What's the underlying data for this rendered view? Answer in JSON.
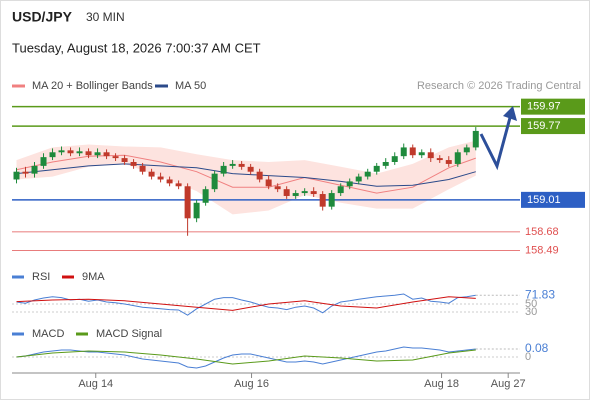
{
  "header": {
    "symbol": "USD/JPY",
    "interval": "30 MIN",
    "timestamp": "Tuesday, August 18, 2026 7:00:37 AM CET"
  },
  "chart_data": [
    {
      "type": "candlestick",
      "source": "Research © 2026 Trading Central",
      "xlim": [
        -0.5,
        54.8
      ],
      "ylim": [
        158.37,
        160.09
      ],
      "xticks": [
        {
          "value": 8.8,
          "label": "Aug 14"
        },
        {
          "value": 26.1,
          "label": "Aug 16"
        },
        {
          "value": 47.2,
          "label": "Aug 18"
        },
        {
          "value": 54.6,
          "label": "Aug 27"
        }
      ],
      "up_color": "#1e8a3c",
      "down_color": "#c0392b",
      "open": [
        159.22,
        159.3,
        159.28,
        159.36,
        159.45,
        159.5,
        159.52,
        159.49,
        159.51,
        159.47,
        159.5,
        159.46,
        159.44,
        159.4,
        159.36,
        159.3,
        159.25,
        159.22,
        159.18,
        159.15,
        158.82,
        158.98,
        159.12,
        159.28,
        159.36,
        159.38,
        159.35,
        159.3,
        159.22,
        159.15,
        159.12,
        159.05,
        159.08,
        159.1,
        159.07,
        158.94,
        159.08,
        159.15,
        159.2,
        159.25,
        159.3,
        159.36,
        159.4,
        159.46,
        159.55,
        159.47,
        159.5,
        159.44,
        159.42,
        159.38,
        159.5,
        159.55
      ],
      "close": [
        159.3,
        159.28,
        159.36,
        159.45,
        159.5,
        159.52,
        159.49,
        159.51,
        159.47,
        159.5,
        159.46,
        159.44,
        159.4,
        159.36,
        159.3,
        159.25,
        159.22,
        159.18,
        159.15,
        158.82,
        158.98,
        159.12,
        159.28,
        159.36,
        159.38,
        159.35,
        159.3,
        159.22,
        159.15,
        159.12,
        159.05,
        159.08,
        159.1,
        159.07,
        158.94,
        159.08,
        159.15,
        159.2,
        159.25,
        159.3,
        159.36,
        159.4,
        159.46,
        159.55,
        159.47,
        159.5,
        159.44,
        159.42,
        159.38,
        159.5,
        159.55,
        159.72
      ],
      "high": [
        159.34,
        159.35,
        159.4,
        159.49,
        159.54,
        159.56,
        159.55,
        159.55,
        159.54,
        159.54,
        159.53,
        159.49,
        159.47,
        159.43,
        159.39,
        159.33,
        159.29,
        159.25,
        159.21,
        159.18,
        159.01,
        159.15,
        159.31,
        159.4,
        159.42,
        159.41,
        159.38,
        159.33,
        159.26,
        159.18,
        159.15,
        159.11,
        159.13,
        159.14,
        159.1,
        159.11,
        159.18,
        159.23,
        159.28,
        159.33,
        159.39,
        159.44,
        159.5,
        159.59,
        159.58,
        159.53,
        159.54,
        159.47,
        159.46,
        159.53,
        159.58,
        159.76
      ],
      "low": [
        159.18,
        159.24,
        159.24,
        159.33,
        159.42,
        159.47,
        159.46,
        159.46,
        159.44,
        159.44,
        159.43,
        159.41,
        159.37,
        159.33,
        159.27,
        159.22,
        159.19,
        159.15,
        159.12,
        158.64,
        158.78,
        158.95,
        159.09,
        159.25,
        159.33,
        159.32,
        159.27,
        159.19,
        159.12,
        159.09,
        159.02,
        159.02,
        159.05,
        159.04,
        158.9,
        158.91,
        159.05,
        159.12,
        159.17,
        159.22,
        159.27,
        159.33,
        159.37,
        159.43,
        159.44,
        159.44,
        159.4,
        159.39,
        159.35,
        159.35,
        159.47,
        159.52
      ],
      "overlays": [
        {
          "name": "MA 20 + Bollinger Bands",
          "color": "#f08080",
          "band_color": "#fde3df",
          "x": [
            0,
            4,
            8,
            12,
            16,
            20,
            24,
            28,
            32,
            36,
            40,
            44,
            48,
            51
          ],
          "values": [
            159.32,
            159.4,
            159.46,
            159.47,
            159.4,
            159.3,
            159.14,
            159.14,
            159.24,
            159.16,
            159.08,
            159.14,
            159.34,
            159.44
          ],
          "upper": [
            159.42,
            159.55,
            159.58,
            159.56,
            159.55,
            159.48,
            159.42,
            159.4,
            159.42,
            159.35,
            159.28,
            159.38,
            159.55,
            159.62
          ],
          "lower": [
            159.22,
            159.25,
            159.35,
            159.38,
            159.25,
            159.1,
            158.86,
            158.9,
            159.06,
            158.98,
            158.92,
            158.92,
            159.12,
            159.26
          ]
        },
        {
          "name": "MA 50",
          "color": "#2b4a8a",
          "x": [
            0,
            4,
            8,
            12,
            16,
            20,
            24,
            28,
            32,
            36,
            40,
            44,
            48,
            51
          ],
          "values": [
            159.28,
            159.32,
            159.36,
            159.38,
            159.36,
            159.34,
            159.28,
            159.26,
            159.24,
            159.2,
            159.15,
            159.16,
            159.22,
            159.3
          ]
        }
      ],
      "levels": [
        {
          "value": 159.97,
          "color": "#5a9a1a",
          "boxed": true
        },
        {
          "value": 159.77,
          "color": "#5a9a1a",
          "boxed": true
        },
        {
          "value": 159.01,
          "color": "#2d5fc4",
          "boxed": true
        },
        {
          "value": 158.68,
          "color": "#e05050",
          "boxed": false
        },
        {
          "value": 158.49,
          "color": "#e05050",
          "boxed": false
        }
      ]
    },
    {
      "type": "line",
      "ylim": [
        0,
        100
      ],
      "yticks": [
        30,
        50
      ],
      "series": [
        {
          "name": "RSI",
          "color": "#4a7fd4",
          "values": [
            55,
            52,
            60,
            65,
            68,
            66,
            60,
            62,
            57,
            60,
            55,
            53,
            50,
            46,
            42,
            40,
            38,
            36,
            35,
            22,
            38,
            50,
            62,
            66,
            66,
            60,
            55,
            48,
            42,
            40,
            36,
            42,
            45,
            40,
            28,
            45,
            55,
            58,
            62,
            65,
            68,
            70,
            72,
            75,
            62,
            65,
            57,
            55,
            52,
            66,
            68,
            71.83
          ]
        },
        {
          "name": "9MA",
          "color": "#d01010",
          "x": [
            0,
            4,
            8,
            12,
            16,
            20,
            24,
            28,
            32,
            36,
            40,
            44,
            48,
            51
          ],
          "values": [
            56,
            60,
            62,
            58,
            50,
            42,
            34,
            50,
            58,
            45,
            40,
            55,
            68,
            64
          ]
        }
      ]
    },
    {
      "type": "line",
      "ylim": [
        -0.15,
        0.15
      ],
      "yticks": [
        0
      ],
      "series": [
        {
          "name": "MACD",
          "color": "#4a7fd4",
          "values": [
            0.0,
            0.01,
            0.03,
            0.05,
            0.06,
            0.07,
            0.07,
            0.06,
            0.05,
            0.05,
            0.04,
            0.03,
            0.02,
            0.0,
            -0.02,
            -0.03,
            -0.04,
            -0.05,
            -0.06,
            -0.1,
            -0.11,
            -0.09,
            -0.05,
            -0.01,
            0.02,
            0.03,
            0.03,
            0.01,
            -0.01,
            -0.03,
            -0.05,
            -0.05,
            -0.04,
            -0.05,
            -0.07,
            -0.05,
            -0.03,
            -0.01,
            0.01,
            0.03,
            0.05,
            0.06,
            0.08,
            0.1,
            0.09,
            0.09,
            0.08,
            0.07,
            0.05,
            0.06,
            0.07,
            0.08
          ]
        },
        {
          "name": "MACD Signal",
          "color": "#5a9a1a",
          "x": [
            0,
            4,
            8,
            12,
            16,
            20,
            24,
            28,
            32,
            36,
            40,
            44,
            48,
            51
          ],
          "values": [
            0.0,
            0.04,
            0.06,
            0.05,
            0.02,
            -0.02,
            -0.07,
            -0.04,
            0.01,
            -0.01,
            -0.04,
            -0.03,
            0.04,
            0.07
          ]
        }
      ]
    }
  ]
}
